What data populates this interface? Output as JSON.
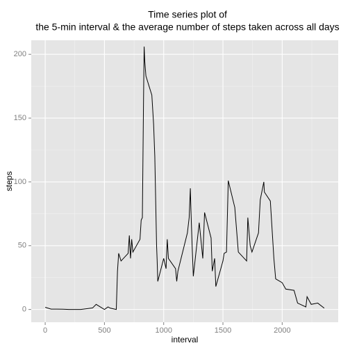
{
  "chart_data": {
    "type": "line",
    "title": [
      "Time series plot of",
      "the 5-min interval & the average number of steps taken across all days"
    ],
    "x_label": "interval",
    "y_label": "steps",
    "x": [
      0,
      50,
      100,
      150,
      200,
      300,
      400,
      430,
      500,
      530,
      550,
      600,
      610,
      620,
      640,
      700,
      710,
      720,
      730,
      740,
      800,
      810,
      820,
      830,
      835,
      840,
      850,
      900,
      915,
      925,
      940,
      945,
      950,
      1000,
      1020,
      1030,
      1040,
      1100,
      1110,
      1120,
      1200,
      1215,
      1225,
      1230,
      1240,
      1250,
      1300,
      1330,
      1345,
      1400,
      1410,
      1430,
      1440,
      1500,
      1510,
      1530,
      1545,
      1600,
      1630,
      1700,
      1710,
      1730,
      1745,
      1800,
      1815,
      1845,
      1850,
      1900,
      1930,
      1945,
      2000,
      2030,
      2100,
      2130,
      2200,
      2210,
      2245,
      2300,
      2355
    ],
    "series": [
      {
        "name": "steps",
        "color": "#000000",
        "values": [
          1.7,
          0.3,
          0.3,
          0.2,
          0,
          0,
          1.2,
          4,
          0,
          2,
          1,
          0,
          30,
          44,
          38,
          44,
          58,
          40,
          55,
          45,
          55,
          70,
          72,
          165,
          206,
          195,
          183,
          168,
          145,
          120,
          50,
          38,
          22,
          40,
          32,
          55,
          40,
          32,
          22,
          30,
          60,
          72,
          95,
          78,
          50,
          26,
          68,
          40,
          76,
          56,
          30,
          40,
          18,
          38,
          44,
          45,
          101,
          80,
          45,
          38,
          72,
          50,
          45,
          60,
          86,
          100,
          92,
          85,
          40,
          24,
          21,
          16,
          15,
          5,
          2,
          10,
          4,
          5,
          1
        ]
      }
    ],
    "xlim": [
      -117.75,
      2472.75
    ],
    "ylim": [
      -10,
      211
    ],
    "xticks": [
      0,
      500,
      1000,
      1500,
      2000
    ],
    "yticks": [
      0,
      50,
      100,
      150,
      200
    ],
    "x_minor_gridlines": [
      250,
      750,
      1250,
      1750,
      2250
    ],
    "y_minor_gridlines": [
      25,
      75,
      125,
      175
    ],
    "grid": true
  }
}
